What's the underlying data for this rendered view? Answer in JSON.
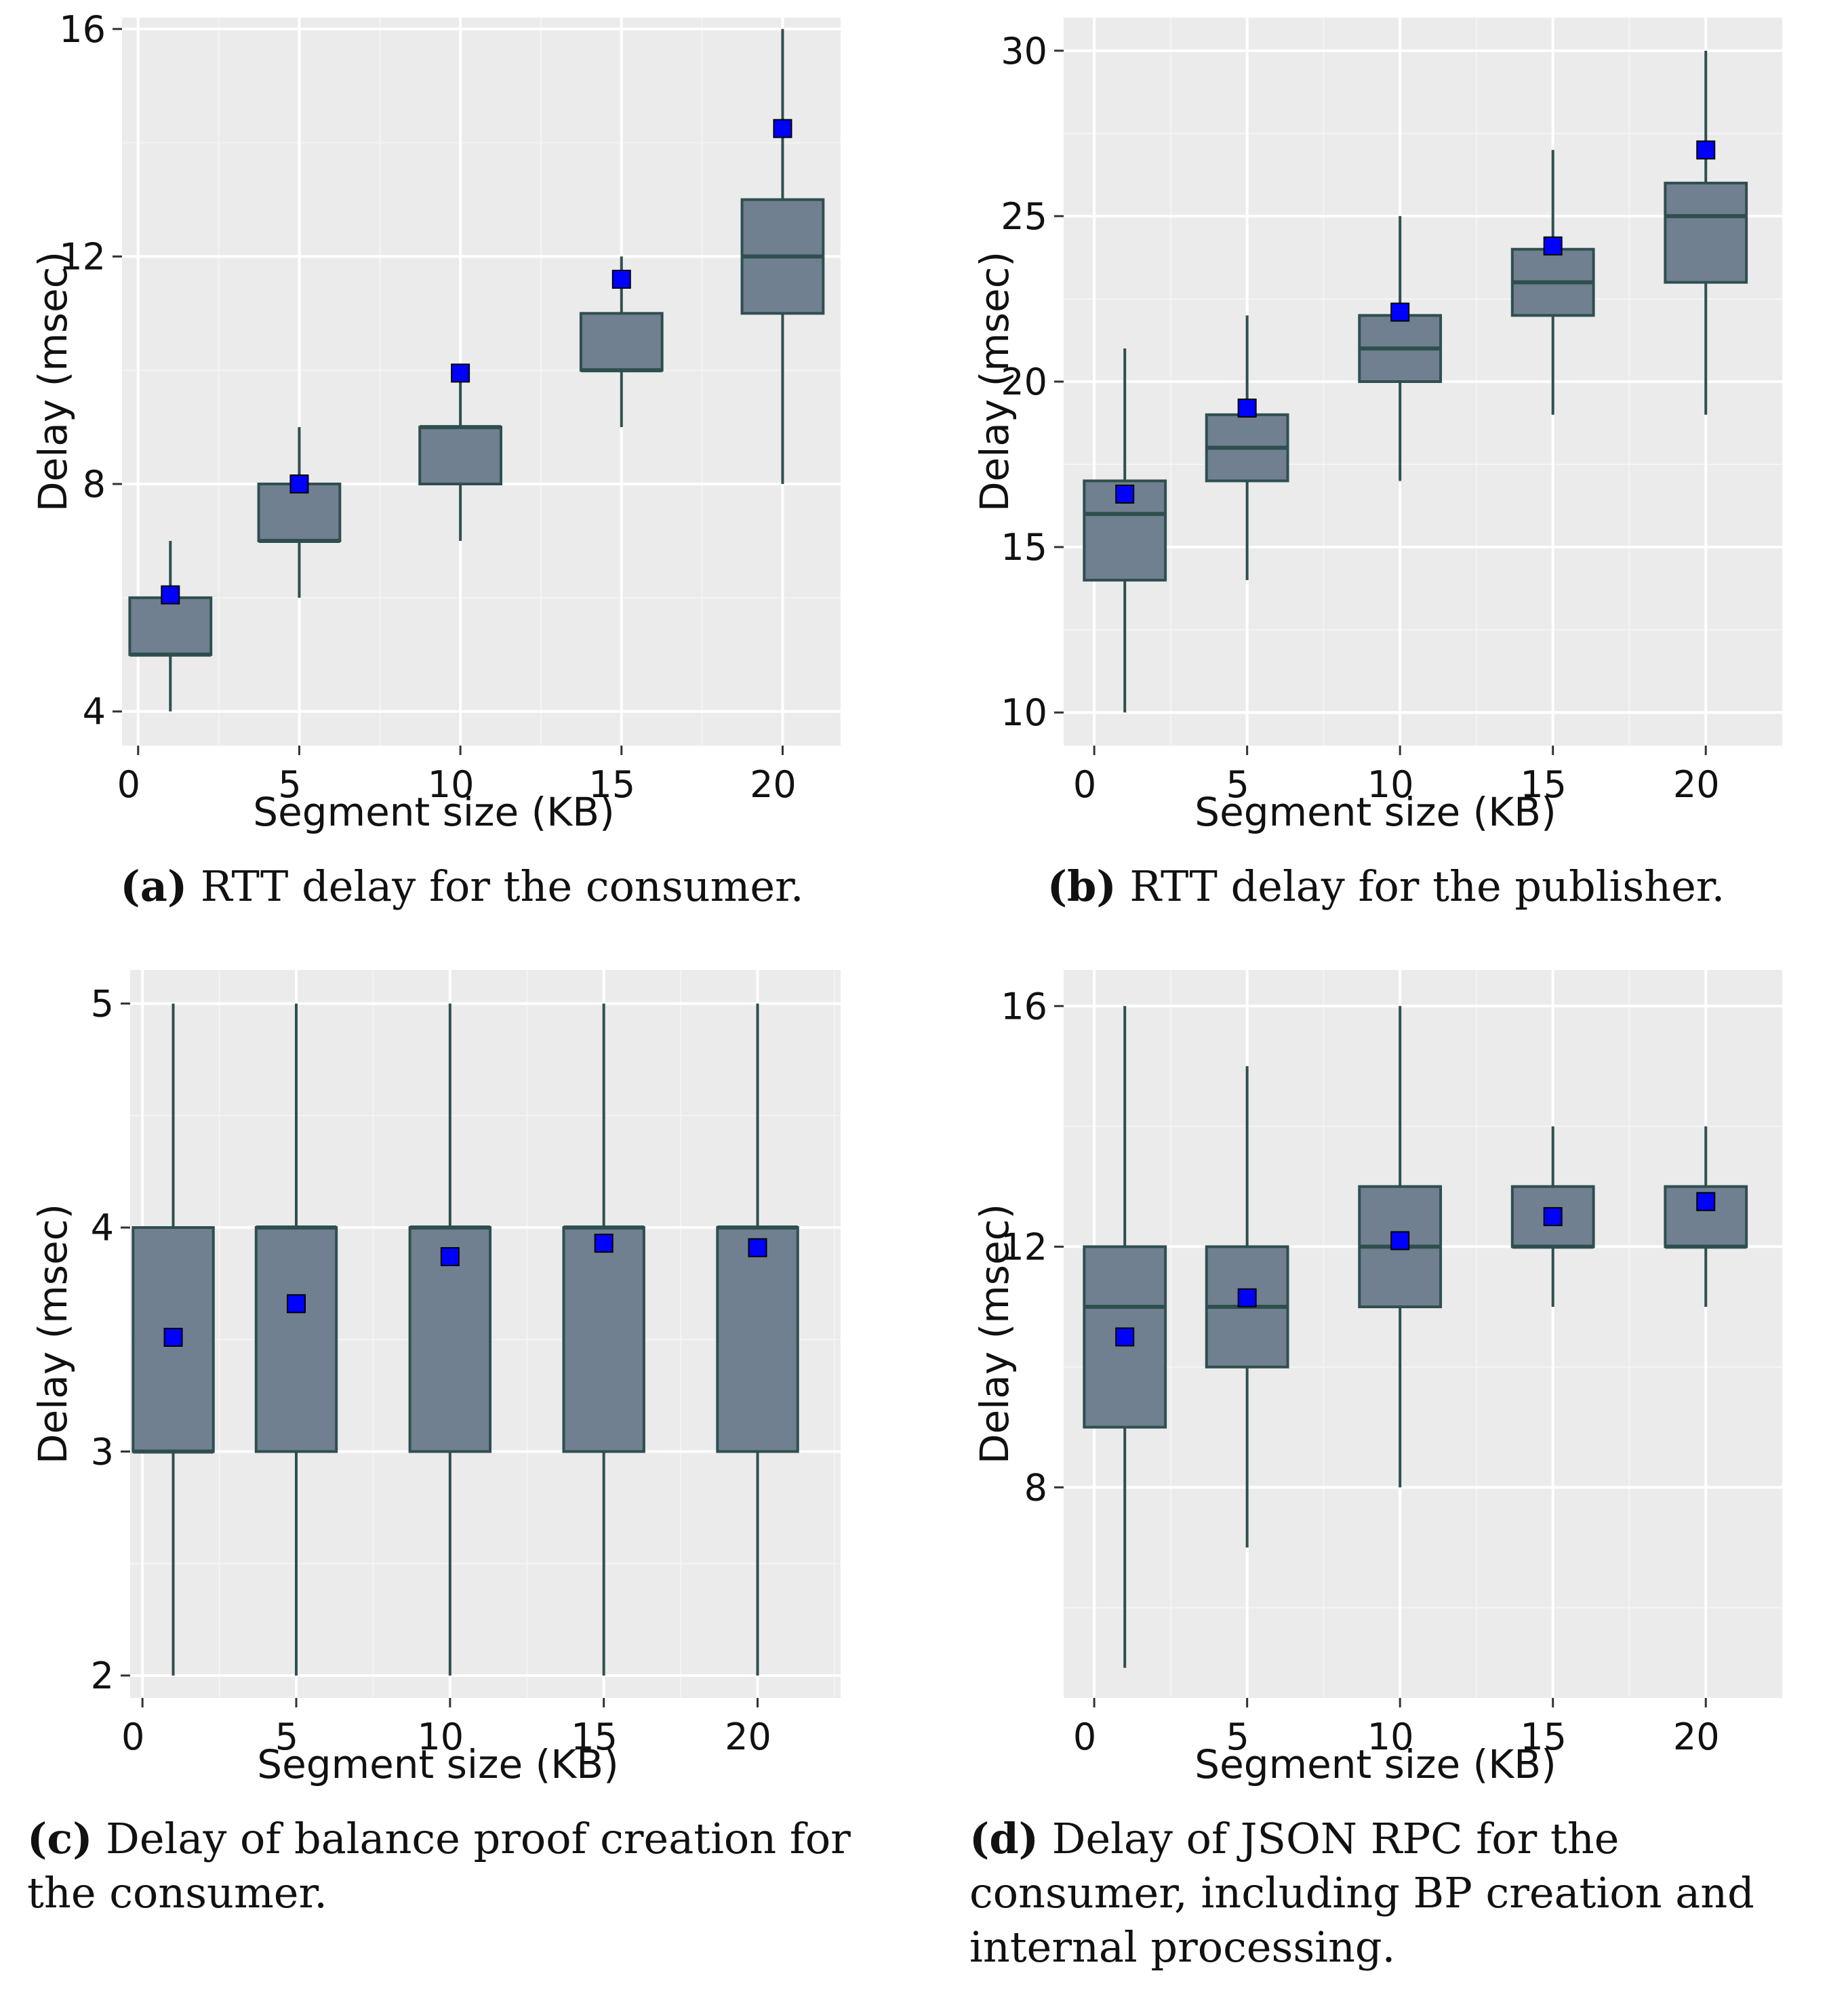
{
  "colors": {
    "panel_background": "#ebebeb",
    "grid_major": "#ffffff",
    "grid_minor": "#f4f4f4",
    "box_fill": "#708090",
    "box_line": "#2f4f4f",
    "mean_marker": "#0000ff"
  },
  "chart_data": [
    {
      "id": "a",
      "type": "boxplot",
      "xlabel": "Segment size (KB)",
      "ylabel": "Delay (msec)",
      "xlim": [
        -0.5,
        21.8
      ],
      "ylim": [
        3.4,
        16.2
      ],
      "xticks": [
        0,
        5,
        10,
        15,
        20
      ],
      "yticks": [
        4,
        8,
        12,
        16
      ],
      "caption_letter": "(a)",
      "caption_text": " RTT delay for the consumer.",
      "boxes": [
        {
          "x": 1,
          "whisker_low": 4,
          "q1": 5,
          "median": 5,
          "q3": 6,
          "whisker_high": 7,
          "mean": 6.05
        },
        {
          "x": 5,
          "whisker_low": 6,
          "q1": 7,
          "median": 7,
          "q3": 8,
          "whisker_high": 9,
          "mean": 8.0
        },
        {
          "x": 10,
          "whisker_low": 7,
          "q1": 8,
          "median": 9,
          "q3": 9,
          "whisker_high": 10,
          "mean": 9.95
        },
        {
          "x": 15,
          "whisker_low": 9,
          "q1": 10,
          "median": 10,
          "q3": 11,
          "whisker_high": 12,
          "mean": 11.6
        },
        {
          "x": 20,
          "whisker_low": 8,
          "q1": 11,
          "median": 12,
          "q3": 13,
          "whisker_high": 16,
          "mean": 14.25
        }
      ]
    },
    {
      "id": "b",
      "type": "boxplot",
      "xlabel": "Segment size (KB)",
      "ylabel": "Delay (msec)",
      "xlim": [
        -1.0,
        22.5
      ],
      "ylim": [
        9.0,
        31.0
      ],
      "xticks": [
        0,
        5,
        10,
        15,
        20
      ],
      "yticks": [
        10,
        15,
        20,
        25,
        30
      ],
      "caption_letter": "(b)",
      "caption_text": " RTT delay for the publisher.",
      "boxes": [
        {
          "x": 1,
          "whisker_low": 10,
          "q1": 14,
          "median": 16,
          "q3": 17,
          "whisker_high": 21,
          "mean": 16.6
        },
        {
          "x": 5,
          "whisker_low": 14,
          "q1": 17,
          "median": 18,
          "q3": 19,
          "whisker_high": 22,
          "mean": 19.2
        },
        {
          "x": 10,
          "whisker_low": 17,
          "q1": 20,
          "median": 21,
          "q3": 22,
          "whisker_high": 25,
          "mean": 22.1
        },
        {
          "x": 15,
          "whisker_low": 19,
          "q1": 22,
          "median": 23,
          "q3": 24,
          "whisker_high": 27,
          "mean": 24.1
        },
        {
          "x": 20,
          "whisker_low": 19,
          "q1": 23,
          "median": 25,
          "q3": 26,
          "whisker_high": 30,
          "mean": 27.0
        }
      ]
    },
    {
      "id": "c",
      "type": "boxplot",
      "xlabel": "Segment size (KB)",
      "ylabel": "Delay (msec)",
      "xlim": [
        -0.4,
        22.7
      ],
      "ylim": [
        1.9,
        5.15
      ],
      "xticks": [
        0,
        5,
        10,
        15,
        20
      ],
      "yticks": [
        2,
        3,
        4,
        5
      ],
      "caption_letter": "(c)",
      "caption_text": " Delay of balance proof creation for the consumer.",
      "boxes": [
        {
          "x": 1,
          "whisker_low": 2,
          "q1": 3,
          "median": 3,
          "q3": 4,
          "whisker_high": 5,
          "mean": 3.51
        },
        {
          "x": 5,
          "whisker_low": 2,
          "q1": 3,
          "median": 4,
          "q3": 4,
          "whisker_high": 5,
          "mean": 3.66
        },
        {
          "x": 10,
          "whisker_low": 2,
          "q1": 3,
          "median": 4,
          "q3": 4,
          "whisker_high": 5,
          "mean": 3.87
        },
        {
          "x": 15,
          "whisker_low": 2,
          "q1": 3,
          "median": 4,
          "q3": 4,
          "whisker_high": 5,
          "mean": 3.93
        },
        {
          "x": 20,
          "whisker_low": 2,
          "q1": 3,
          "median": 4,
          "q3": 4,
          "whisker_high": 5,
          "mean": 3.91
        }
      ]
    },
    {
      "id": "d",
      "type": "boxplot",
      "xlabel": "Segment size (KB)",
      "ylabel": "Delay (msec)",
      "xlim": [
        -1.0,
        22.5
      ],
      "ylim": [
        4.5,
        16.6
      ],
      "xticks": [
        0,
        5,
        10,
        15,
        20
      ],
      "yticks": [
        8,
        12,
        16
      ],
      "caption_letter": "(d)",
      "caption_text": " Delay of JSON RPC for the consumer, including BP creation and internal processing.",
      "boxes": [
        {
          "x": 1,
          "whisker_low": 5,
          "q1": 9,
          "median": 11,
          "q3": 12,
          "whisker_high": 16,
          "mean": 10.5
        },
        {
          "x": 5,
          "whisker_low": 7,
          "q1": 10,
          "median": 11,
          "q3": 12,
          "whisker_high": 15,
          "mean": 11.15
        },
        {
          "x": 10,
          "whisker_low": 8,
          "q1": 11,
          "median": 12,
          "q3": 13,
          "whisker_high": 16,
          "mean": 12.1
        },
        {
          "x": 15,
          "whisker_low": 11,
          "q1": 12,
          "median": 12,
          "q3": 13,
          "whisker_high": 14,
          "mean": 12.5
        },
        {
          "x": 20,
          "whisker_low": 11,
          "q1": 12,
          "median": 12,
          "q3": 13,
          "whisker_high": 14,
          "mean": 12.75
        }
      ]
    }
  ]
}
